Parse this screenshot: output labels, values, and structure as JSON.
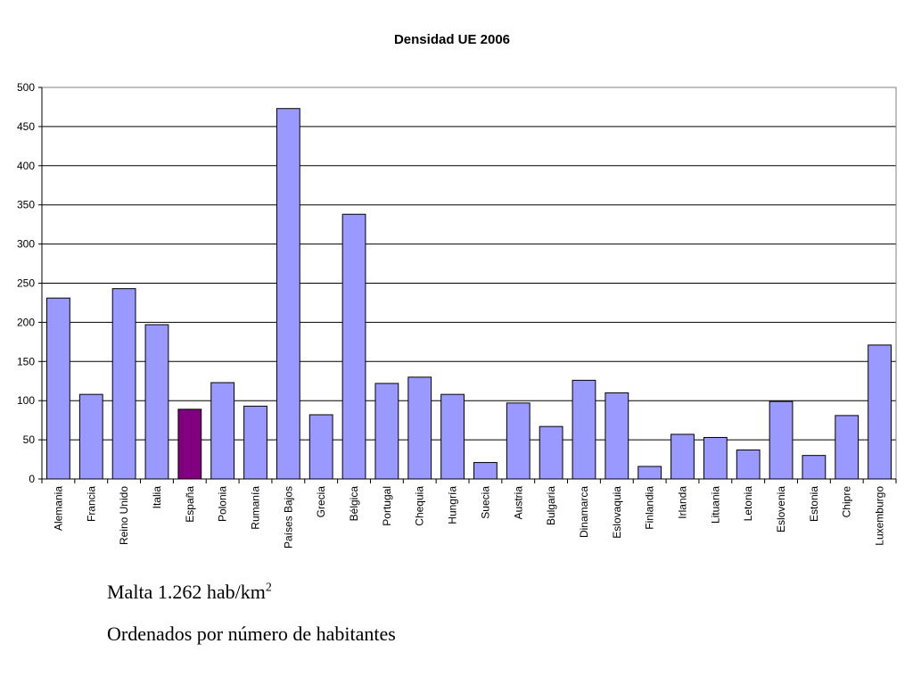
{
  "chart_data": {
    "type": "bar",
    "title": "Densidad UE 2006",
    "categories": [
      "Alemania",
      "Francia",
      "Reino Unido",
      "Italia",
      "España",
      "Polonia",
      "Rumanía",
      "Países Bajos",
      "Grecia",
      "Bélgica",
      "Portugal",
      "Chequia",
      "Hungría",
      "Suecia",
      "Austria",
      "Bulgaria",
      "Dinamarca",
      "Eslovaquia",
      "Finlandia",
      "Irlanda",
      "Lituania",
      "Letonia",
      "Eslovenia",
      "Estonia",
      "Chipre",
      "Luxemburgo"
    ],
    "values": [
      231,
      108,
      243,
      197,
      89,
      123,
      93,
      473,
      82,
      338,
      122,
      130,
      108,
      21,
      97,
      67,
      126,
      110,
      16,
      57,
      53,
      37,
      99,
      30,
      81,
      171
    ],
    "ylim": [
      0,
      500
    ],
    "yticks": [
      0,
      50,
      100,
      150,
      200,
      250,
      300,
      350,
      400,
      450,
      500
    ],
    "grid": true,
    "bar_color": "#9999ff",
    "highlight_color": "#800080",
    "highlight_category": "España"
  },
  "notes": {
    "malta_prefix": "Malta 1.262 hab/km",
    "malta_sup": "2",
    "ordering": "Ordenados por número de habitantes"
  }
}
